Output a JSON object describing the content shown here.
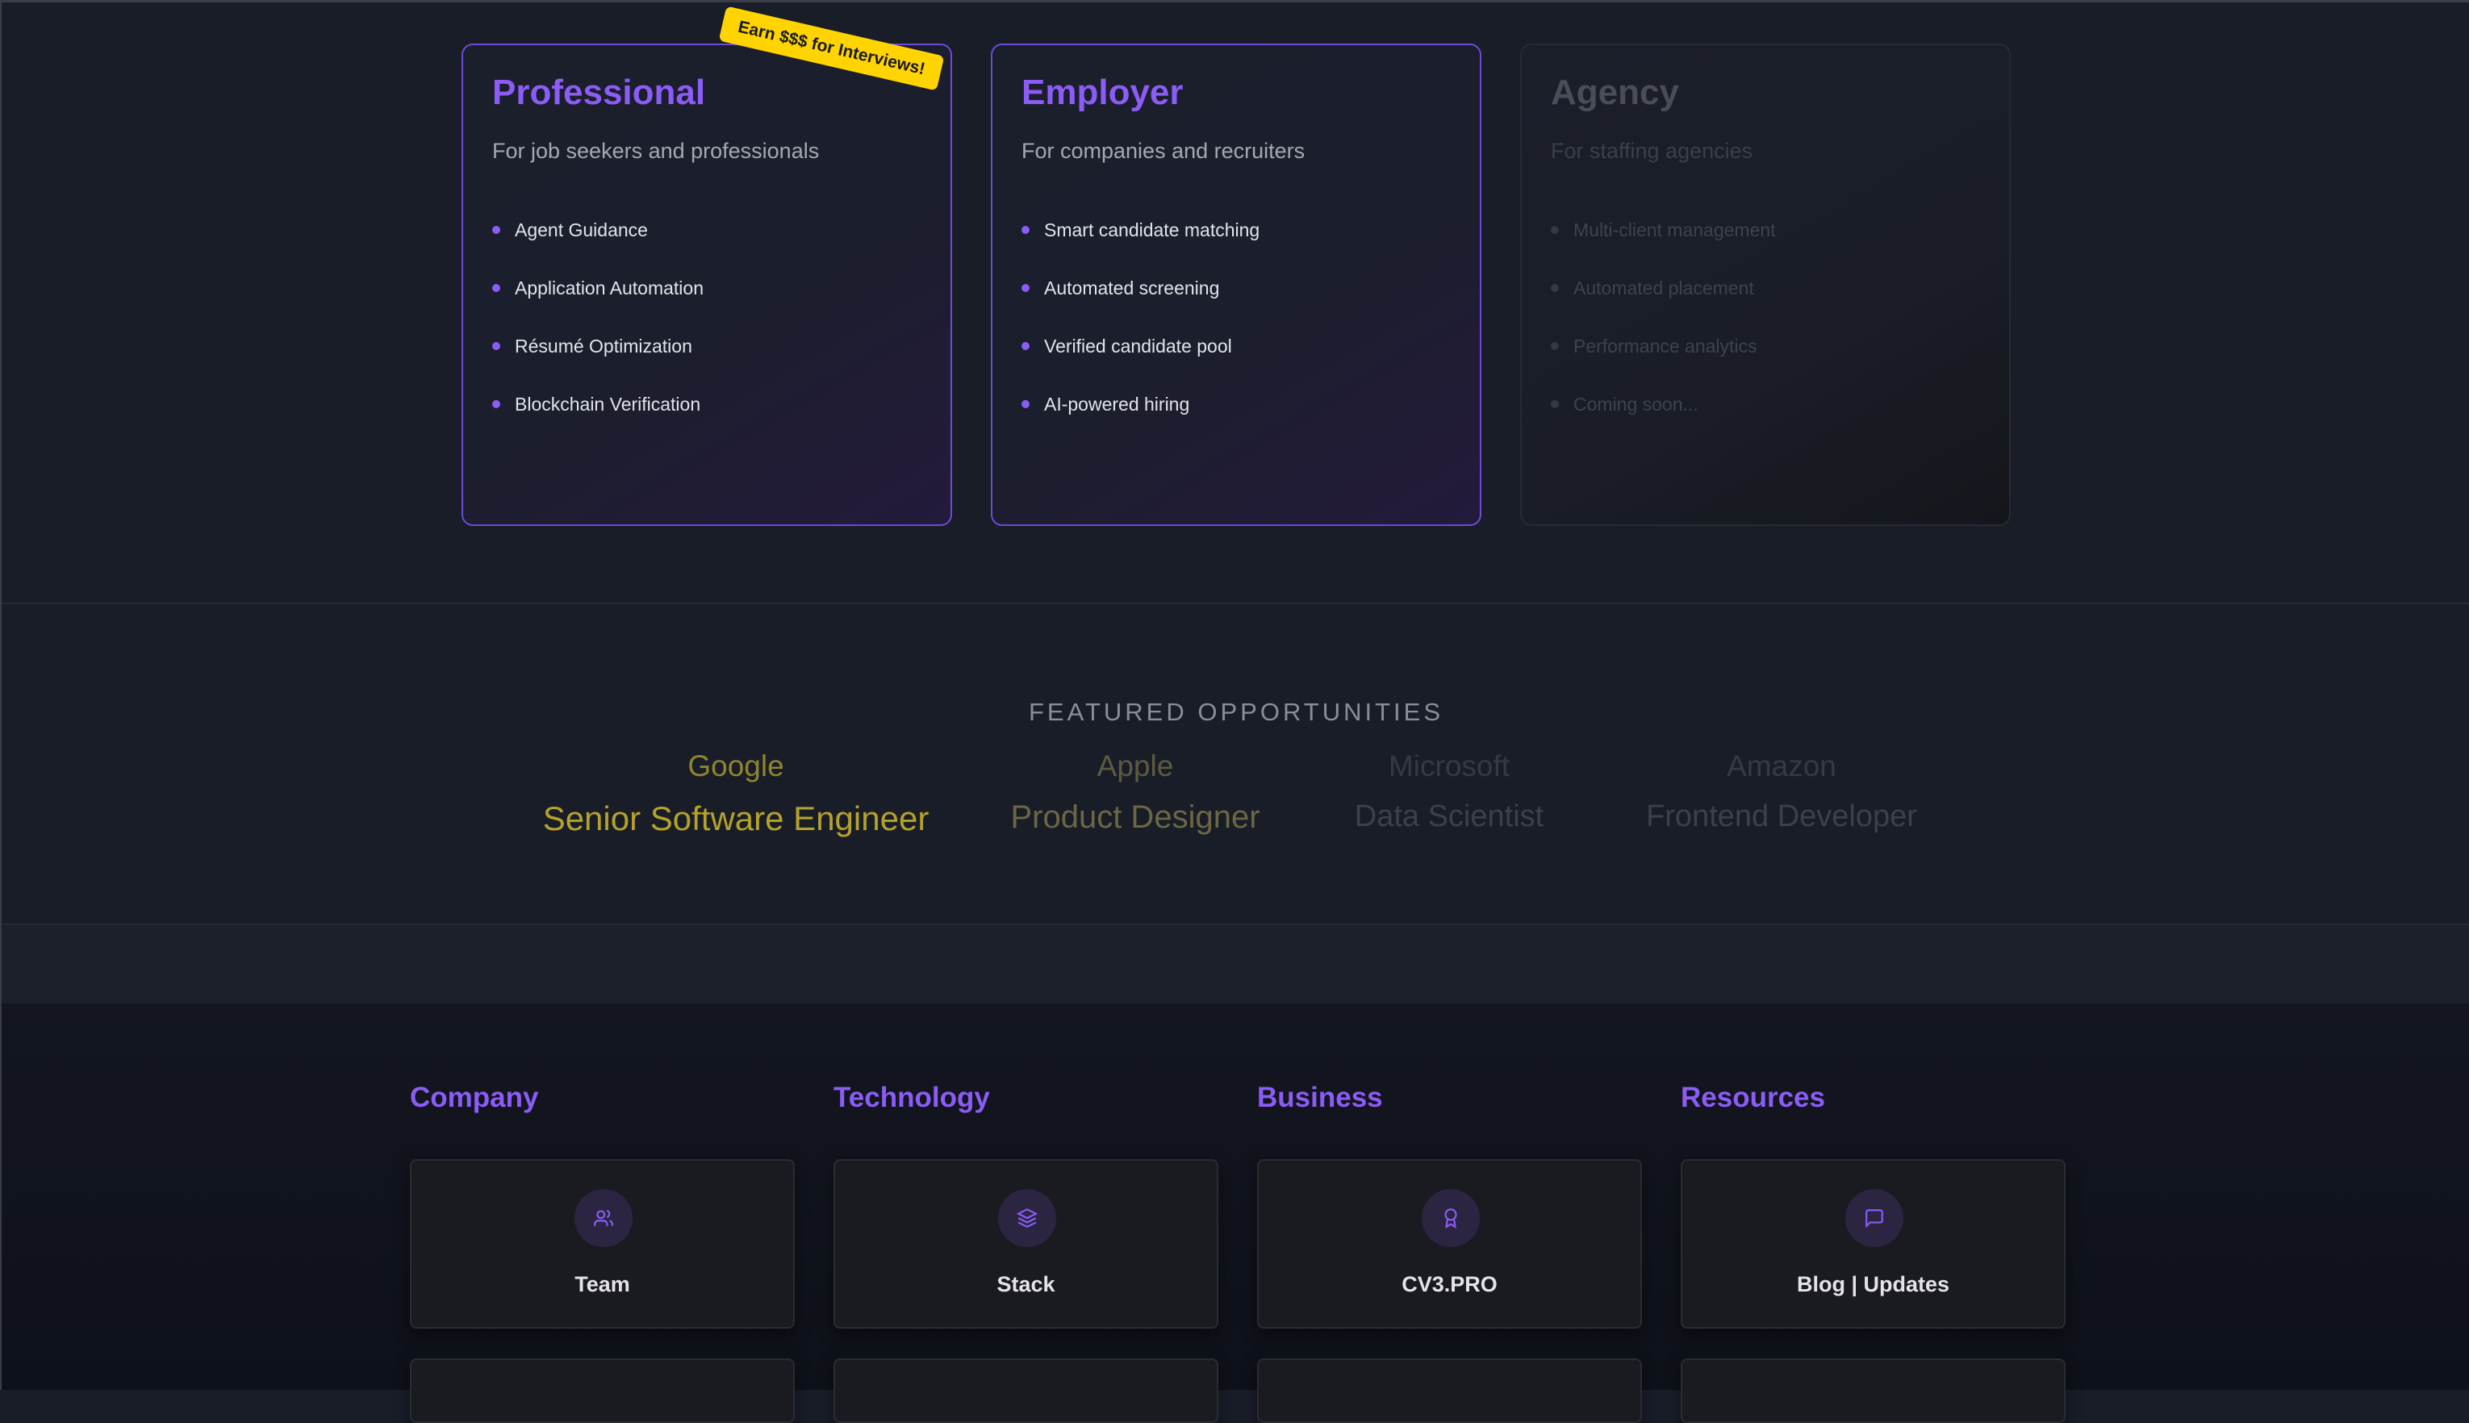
{
  "plans": [
    {
      "title": "Professional",
      "subtitle": "For job seekers and professionals",
      "badge": "Earn $$$ for Interviews!",
      "items": [
        "Agent Guidance",
        "Application Automation",
        "Résumé Optimization",
        "Blockchain Verification"
      ]
    },
    {
      "title": "Employer",
      "subtitle": "For companies and recruiters",
      "items": [
        "Smart candidate matching",
        "Automated screening",
        "Verified candidate pool",
        "AI-powered hiring"
      ]
    },
    {
      "title": "Agency",
      "subtitle": "For staffing agencies",
      "items": [
        "Multi-client management",
        "Automated placement",
        "Performance analytics",
        "Coming soon..."
      ]
    }
  ],
  "featured": {
    "heading": "FEATURED OPPORTUNITIES",
    "items": [
      {
        "company": "Google",
        "title": "Senior Software Engineer"
      },
      {
        "company": "Apple",
        "title": "Product Designer"
      },
      {
        "company": "Microsoft",
        "title": "Data Scientist"
      },
      {
        "company": "Amazon",
        "title": "Frontend Developer"
      }
    ]
  },
  "footer": {
    "columns": [
      {
        "heading": "Company",
        "card": "Team",
        "icon": "users-icon"
      },
      {
        "heading": "Technology",
        "card": "Stack",
        "icon": "layers-icon"
      },
      {
        "heading": "Business",
        "card": "CV3.PRO",
        "icon": "award-icon"
      },
      {
        "heading": "Resources",
        "card": "Blog | Updates",
        "icon": "message-square-icon"
      }
    ]
  },
  "colors": {
    "accent": "#8b5cf6",
    "badge": "#ffd400",
    "featured_highlight": "#b5a22a"
  }
}
